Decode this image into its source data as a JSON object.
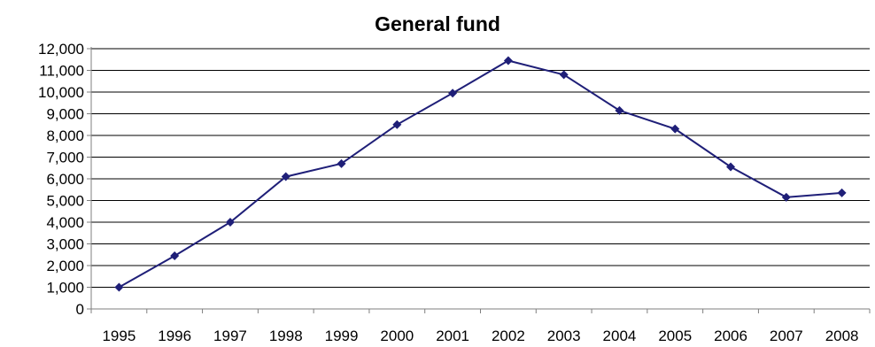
{
  "chart_data": {
    "type": "line",
    "title": "General fund",
    "xlabel": "",
    "ylabel": "",
    "categories": [
      "1995",
      "1996",
      "1997",
      "1998",
      "1999",
      "2000",
      "2001",
      "2002",
      "2003",
      "2004",
      "2005",
      "2006",
      "2007",
      "2008"
    ],
    "series": [
      {
        "values": [
          1000,
          2450,
          4000,
          6100,
          6700,
          8500,
          9950,
          11450,
          10800,
          9150,
          8300,
          6550,
          5150,
          5350
        ]
      }
    ],
    "ylim": [
      0,
      12000
    ],
    "yticks": [
      0,
      1000,
      2000,
      3000,
      4000,
      5000,
      6000,
      7000,
      8000,
      9000,
      10000,
      11000,
      12000
    ],
    "ytick_labels": [
      "0",
      "1,000",
      "2,000",
      "3,000",
      "4,000",
      "5,000",
      "6,000",
      "7,000",
      "8,000",
      "9,000",
      "10,000",
      "11,000",
      "12,000"
    ],
    "grid": true,
    "legend": "none",
    "colors": {
      "line": "#1f1f78",
      "marker": "#1f1f78",
      "grid": "#000000",
      "axis": "#7f7f7f"
    }
  }
}
